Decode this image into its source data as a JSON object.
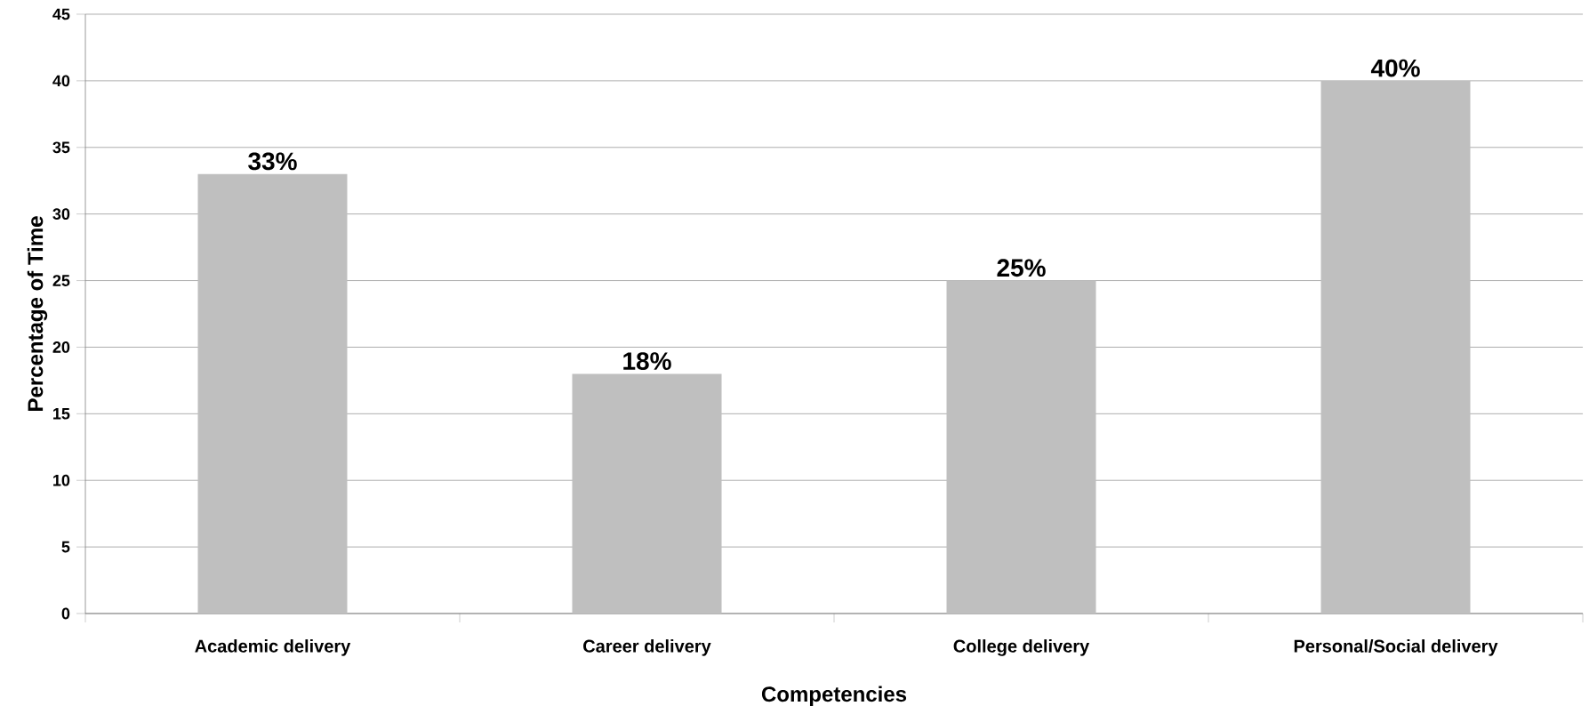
{
  "chart_data": {
    "type": "bar",
    "xlabel": "Competencies",
    "ylabel": "Percentage of Time",
    "categories": [
      "Academic delivery",
      "Career delivery",
      "College delivery",
      "Personal/Social delivery"
    ],
    "values": [
      33,
      18,
      25,
      40
    ],
    "color": "#bfbfbf",
    "value_labels": [
      "33%",
      "18%",
      "25%",
      "40%"
    ],
    "ylim": [
      0,
      45
    ],
    "yticks": [
      0,
      5,
      10,
      15,
      20,
      25,
      30,
      35,
      40,
      45
    ],
    "grid": "y"
  }
}
